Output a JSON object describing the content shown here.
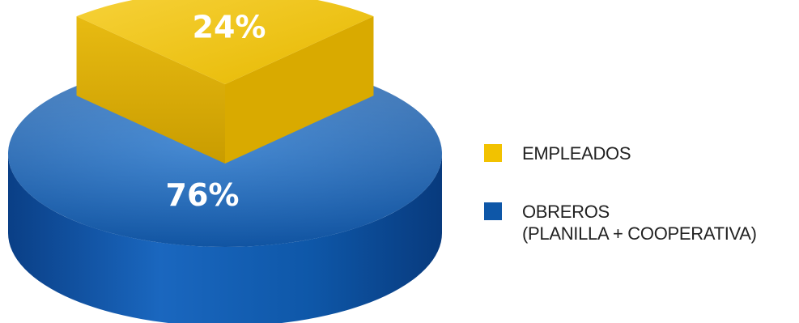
{
  "chart_data": {
    "type": "pie",
    "style": "3d-exploded",
    "slices": [
      {
        "label": "EMPLEADOS",
        "value": 24,
        "value_label": "24%",
        "color": "#f2c200"
      },
      {
        "label": "OBREROS\n(PLANILLA + COOPERATIVA)",
        "value": 76,
        "value_label": "76%",
        "color": "#0e57a8"
      }
    ],
    "legend_position": "right"
  }
}
